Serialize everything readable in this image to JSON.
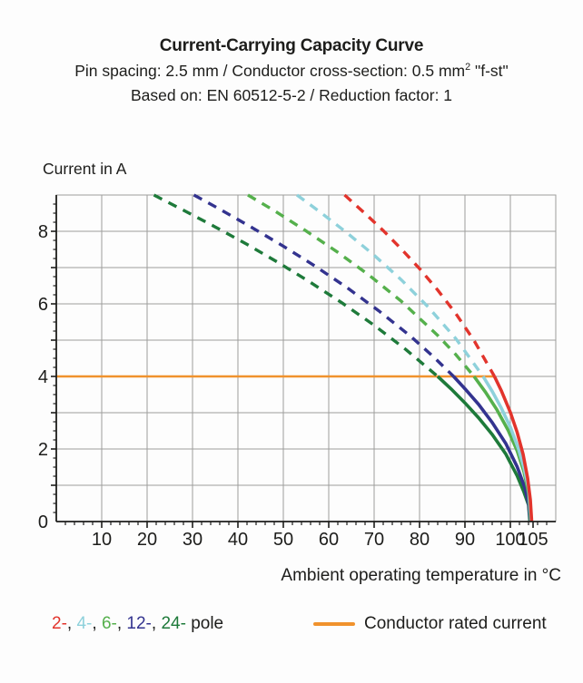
{
  "header": {
    "title": "Current-Carrying Capacity Curve",
    "subtitle_line1": {
      "text": "Pin spacing: 2.5 mm / Conductor cross-section: 0.5 mm",
      "sup": "2",
      "suffix": " \"f-st\""
    },
    "subtitle_line2": "Based on: EN 60512-5-2 / Reduction factor: 1"
  },
  "chart_data": {
    "type": "line",
    "title": "Current-Carrying Capacity Curve",
    "xlabel": "Ambient operating temperature in °C",
    "ylabel": "Current in A",
    "xlim": [
      0,
      110
    ],
    "ylim": [
      0,
      9
    ],
    "x_tick_labels": [
      10,
      20,
      30,
      40,
      50,
      60,
      70,
      80,
      90,
      100,
      105
    ],
    "x_minor_tick_step": 2,
    "y_tick_labels": [
      0,
      2,
      4,
      6,
      8
    ],
    "y_minor_tick_step": 0.25,
    "grid": {
      "x_step": 10,
      "y_step": 1,
      "on": true,
      "color": "#9d9d9c"
    },
    "axis_color": "#1d1d1b",
    "reference_line": {
      "name": "Conductor rated current",
      "current_a": 4,
      "x_start": 0,
      "x_end": 96.5,
      "color": "#f0922d"
    },
    "series": [
      {
        "name": "24-pole",
        "color": "#1e7a3a",
        "dashed_above_a": 4,
        "points_dashed": [
          [
            21.5,
            9.0
          ],
          [
            28,
            8.58
          ],
          [
            35,
            8.12
          ],
          [
            42,
            7.64
          ],
          [
            49,
            7.13
          ],
          [
            56,
            6.59
          ],
          [
            63,
            6.02
          ],
          [
            70,
            5.41
          ],
          [
            77,
            4.74
          ],
          [
            84,
            4.0
          ]
        ],
        "points_solid": [
          [
            84,
            4.0
          ],
          [
            87,
            3.65
          ],
          [
            90,
            3.27
          ],
          [
            93,
            2.86
          ],
          [
            96,
            2.4
          ],
          [
            99,
            1.86
          ],
          [
            101.5,
            1.26
          ],
          [
            103,
            0.81
          ],
          [
            104,
            0.46
          ],
          [
            104.3,
            0
          ]
        ]
      },
      {
        "name": "12-pole",
        "color": "#33338f",
        "dashed_above_a": 4,
        "points_dashed": [
          [
            30.3,
            9.0
          ],
          [
            36,
            8.61
          ],
          [
            43,
            8.11
          ],
          [
            50,
            7.59
          ],
          [
            57,
            7.04
          ],
          [
            64,
            6.45
          ],
          [
            71,
            5.81
          ],
          [
            78,
            5.11
          ],
          [
            83,
            4.55
          ],
          [
            87.5,
            4.0
          ]
        ],
        "points_solid": [
          [
            87.5,
            4.0
          ],
          [
            90,
            3.66
          ],
          [
            93,
            3.23
          ],
          [
            96,
            2.73
          ],
          [
            99,
            2.15
          ],
          [
            101.5,
            1.51
          ],
          [
            103.2,
            0.93
          ],
          [
            104,
            0.5
          ],
          [
            104.4,
            0
          ]
        ]
      },
      {
        "name": "6-pole",
        "color": "#55b04c",
        "dashed_above_a": 4,
        "points_dashed": [
          [
            42.2,
            9.0
          ],
          [
            48,
            8.57
          ],
          [
            55,
            8.01
          ],
          [
            62,
            7.42
          ],
          [
            69,
            6.78
          ],
          [
            76,
            6.07
          ],
          [
            84,
            5.13
          ],
          [
            88,
            4.6
          ],
          [
            92,
            4.0
          ]
        ],
        "points_solid": [
          [
            92,
            4.0
          ],
          [
            94.5,
            3.57
          ],
          [
            97,
            3.09
          ],
          [
            99.5,
            2.52
          ],
          [
            101.5,
            1.95
          ],
          [
            103,
            1.37
          ],
          [
            104,
            0.79
          ],
          [
            104.5,
            0
          ]
        ]
      },
      {
        "name": "4-pole",
        "color": "#8ed1db",
        "dashed_above_a": 4,
        "points_dashed": [
          [
            53,
            9.0
          ],
          [
            58,
            8.54
          ],
          [
            64,
            7.96
          ],
          [
            70,
            7.34
          ],
          [
            76,
            6.66
          ],
          [
            82,
            5.9
          ],
          [
            88,
            5.04
          ],
          [
            94,
            4.0
          ]
        ],
        "points_solid": [
          [
            94,
            4.0
          ],
          [
            96,
            3.59
          ],
          [
            98,
            3.13
          ],
          [
            100,
            2.6
          ],
          [
            101.8,
            2.0
          ],
          [
            103,
            1.48
          ],
          [
            104,
            0.93
          ],
          [
            104.6,
            0
          ]
        ]
      },
      {
        "name": "2-pole",
        "color": "#e2342c",
        "dashed_above_a": 4,
        "points_dashed": [
          [
            63.5,
            9.0
          ],
          [
            68,
            8.49
          ],
          [
            72,
            8.02
          ],
          [
            76,
            7.51
          ],
          [
            80,
            6.97
          ],
          [
            84,
            6.38
          ],
          [
            88,
            5.73
          ],
          [
            92,
            4.99
          ],
          [
            96.5,
            4.0
          ]
        ],
        "points_solid": [
          [
            96.5,
            4.0
          ],
          [
            98,
            3.61
          ],
          [
            100,
            3.01
          ],
          [
            101.5,
            2.46
          ],
          [
            102.8,
            1.86
          ],
          [
            103.8,
            1.2
          ],
          [
            104.4,
            0.6
          ],
          [
            104.7,
            0
          ]
        ]
      }
    ]
  },
  "legend": {
    "pole_items": [
      {
        "label": "2-",
        "color": "#e2342c"
      },
      {
        "label": "4-",
        "color": "#8ed1db"
      },
      {
        "label": "6-",
        "color": "#55b04c"
      },
      {
        "label": "12-",
        "color": "#33338f"
      },
      {
        "label": "24-",
        "color": "#1e7a3a"
      }
    ],
    "separator": ",",
    "pole_word": "pole",
    "rated_label": "Conductor rated current"
  }
}
